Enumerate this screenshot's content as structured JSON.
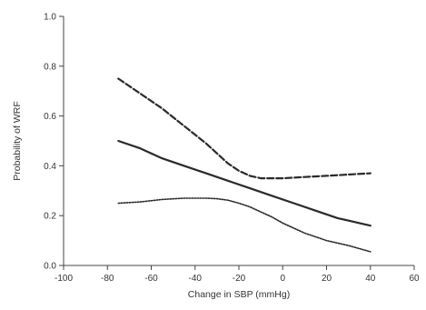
{
  "chart_data": {
    "type": "line",
    "title": "",
    "xlabel": "Change in SBP (mmHg)",
    "ylabel": "Probability of WRF",
    "xlim": [
      -100,
      60
    ],
    "ylim": [
      0.0,
      1.0
    ],
    "xticks": [
      "-100",
      "-80",
      "-60",
      "-40",
      "-20",
      "0",
      "20",
      "40",
      "60"
    ],
    "yticks": [
      "0.0",
      "0.2",
      "0.4",
      "0.6",
      "0.8",
      "1.0"
    ],
    "grid": false,
    "legend": "none",
    "series": [
      {
        "style": "dashed",
        "x": [
          -75,
          -65,
          -55,
          -45,
          -35,
          -25,
          -20,
          -15,
          -10,
          -5,
          0,
          10,
          20,
          30,
          40
        ],
        "y": [
          0.75,
          0.69,
          0.63,
          0.56,
          0.49,
          0.41,
          0.38,
          0.36,
          0.35,
          0.35,
          0.35,
          0.355,
          0.36,
          0.365,
          0.37
        ]
      },
      {
        "style": "solid",
        "x": [
          -75,
          -65,
          -55,
          -45,
          -35,
          -25,
          -15,
          -5,
          5,
          15,
          25,
          35,
          40
        ],
        "y": [
          0.5,
          0.47,
          0.43,
          0.4,
          0.37,
          0.34,
          0.31,
          0.28,
          0.25,
          0.22,
          0.19,
          0.17,
          0.16
        ]
      },
      {
        "style": "dotted",
        "x": [
          -75,
          -65,
          -55,
          -45,
          -35,
          -30,
          -25,
          -20,
          -15,
          -10,
          -5,
          0,
          10,
          20,
          30,
          40
        ],
        "y": [
          0.25,
          0.255,
          0.265,
          0.27,
          0.27,
          0.268,
          0.262,
          0.25,
          0.235,
          0.215,
          0.195,
          0.17,
          0.13,
          0.1,
          0.08,
          0.055
        ]
      }
    ]
  }
}
